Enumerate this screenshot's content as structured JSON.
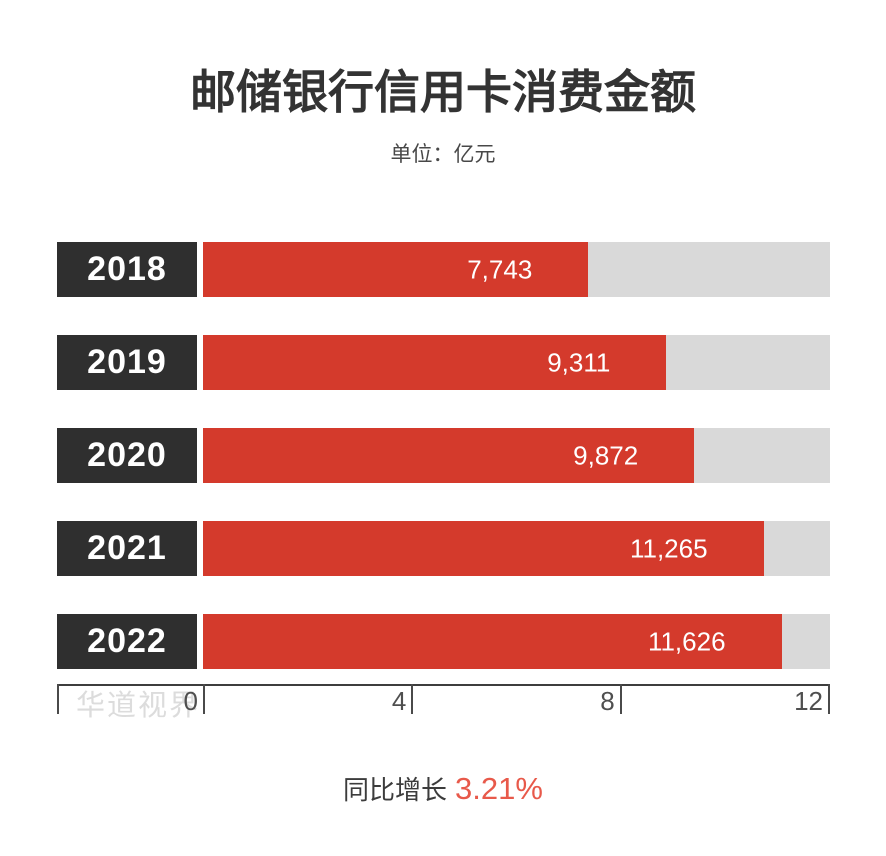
{
  "page": {
    "background": "#ffffff"
  },
  "header": {
    "title": "邮储银行信用卡消费金额",
    "unit_label": "单位：亿元"
  },
  "chart_data": {
    "type": "bar",
    "orientation": "horizontal",
    "title": "邮储银行信用卡消费金额",
    "unit": "亿元",
    "categories": [
      "2018",
      "2019",
      "2020",
      "2021",
      "2022"
    ],
    "values": [
      7743,
      9311,
      9872,
      11265,
      11626
    ],
    "value_labels": [
      "7,743",
      "9,311",
      "9,872",
      "11,265",
      "11,626"
    ],
    "xlim": [
      0,
      12000
    ],
    "x_ticks": [
      0,
      4,
      8,
      12
    ],
    "x_tick_labels": [
      "0",
      "4",
      "8",
      "12"
    ],
    "x_tick_scale": 1000,
    "grid": false,
    "legend": false,
    "bar_color": "#d43a2c",
    "track_color": "#d9d9d9",
    "category_box_color": "#2f2f2f",
    "value_label_color": "#ffffff"
  },
  "watermark": {
    "text": "华道视界"
  },
  "footer": {
    "label": "同比增长",
    "value": "3.21%",
    "value_color": "#e8594a"
  }
}
